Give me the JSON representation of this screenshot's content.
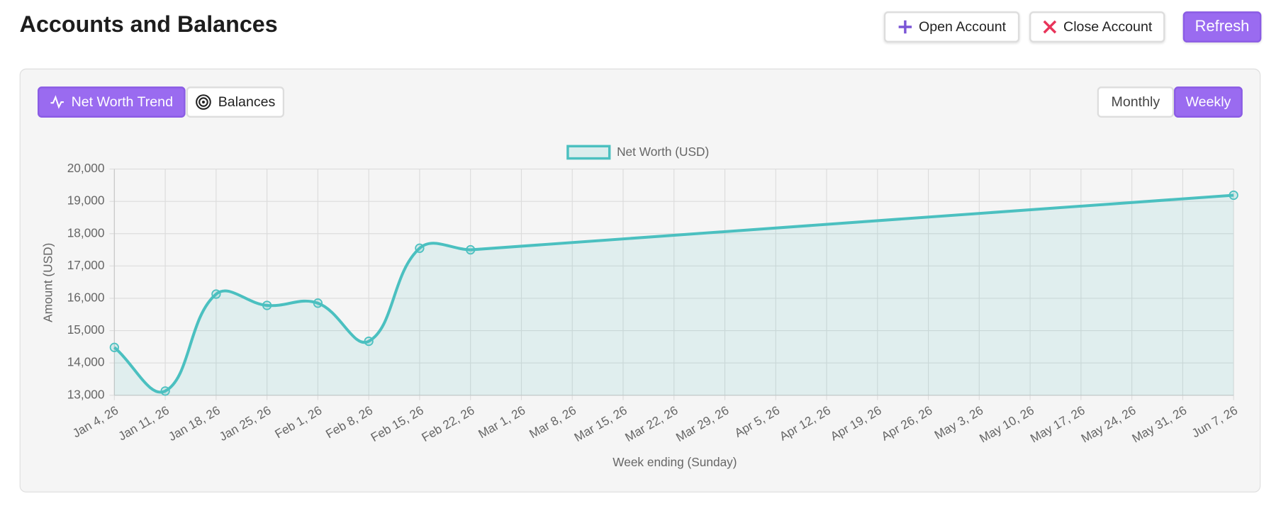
{
  "header": {
    "title": "Accounts and Balances",
    "buttons": [
      "Open Account",
      "Close Account",
      "Refresh"
    ]
  },
  "tabs": [
    "Net Worth Trend",
    "Balances"
  ],
  "period_toggle": [
    "Monthly",
    "Weekly"
  ],
  "chart_data": {
    "type": "line",
    "x_label": "Week ending (Sunday)",
    "y_label": "Amount (USD)",
    "categories": [
      "Jan 4, 26",
      "Jan 11, 26",
      "Jan 18, 26",
      "Jan 25, 26",
      "Feb 1, 26",
      "Feb 8, 26",
      "Feb 15, 26",
      "Feb 22, 26",
      "Mar 1, 26",
      "Mar 8, 26",
      "Mar 15, 26",
      "Mar 22, 26",
      "Mar 29, 26",
      "Apr 5, 26",
      "Apr 12, 26",
      "Apr 19, 26",
      "Apr 26, 26",
      "May 3, 26",
      "May 10, 26",
      "May 17, 26",
      "May 24, 26",
      "May 31, 26",
      "Jun 7, 26"
    ],
    "series": [
      {
        "name": "Net Worth (USD)",
        "color": "#4bc0c0",
        "values": [
          14480,
          13130,
          16130,
          15780,
          15850,
          14670,
          17550,
          17500,
          null,
          null,
          null,
          null,
          null,
          null,
          null,
          null,
          null,
          null,
          null,
          null,
          null,
          null,
          19190
        ]
      }
    ],
    "ylim": [
      13000,
      20000
    ],
    "yticks": [
      {
        "value": 13000,
        "label": "13,000"
      },
      {
        "value": 14000,
        "label": "14,000"
      },
      {
        "value": 15000,
        "label": "15,000"
      },
      {
        "value": 16000,
        "label": "16,000"
      },
      {
        "value": 17000,
        "label": "17,000"
      },
      {
        "value": 18000,
        "label": "18,000"
      },
      {
        "value": 19000,
        "label": "19,000"
      },
      {
        "value": 20000,
        "label": "20,000"
      }
    ],
    "grid": true,
    "fill": true,
    "span_gaps": true,
    "legend": "top"
  }
}
